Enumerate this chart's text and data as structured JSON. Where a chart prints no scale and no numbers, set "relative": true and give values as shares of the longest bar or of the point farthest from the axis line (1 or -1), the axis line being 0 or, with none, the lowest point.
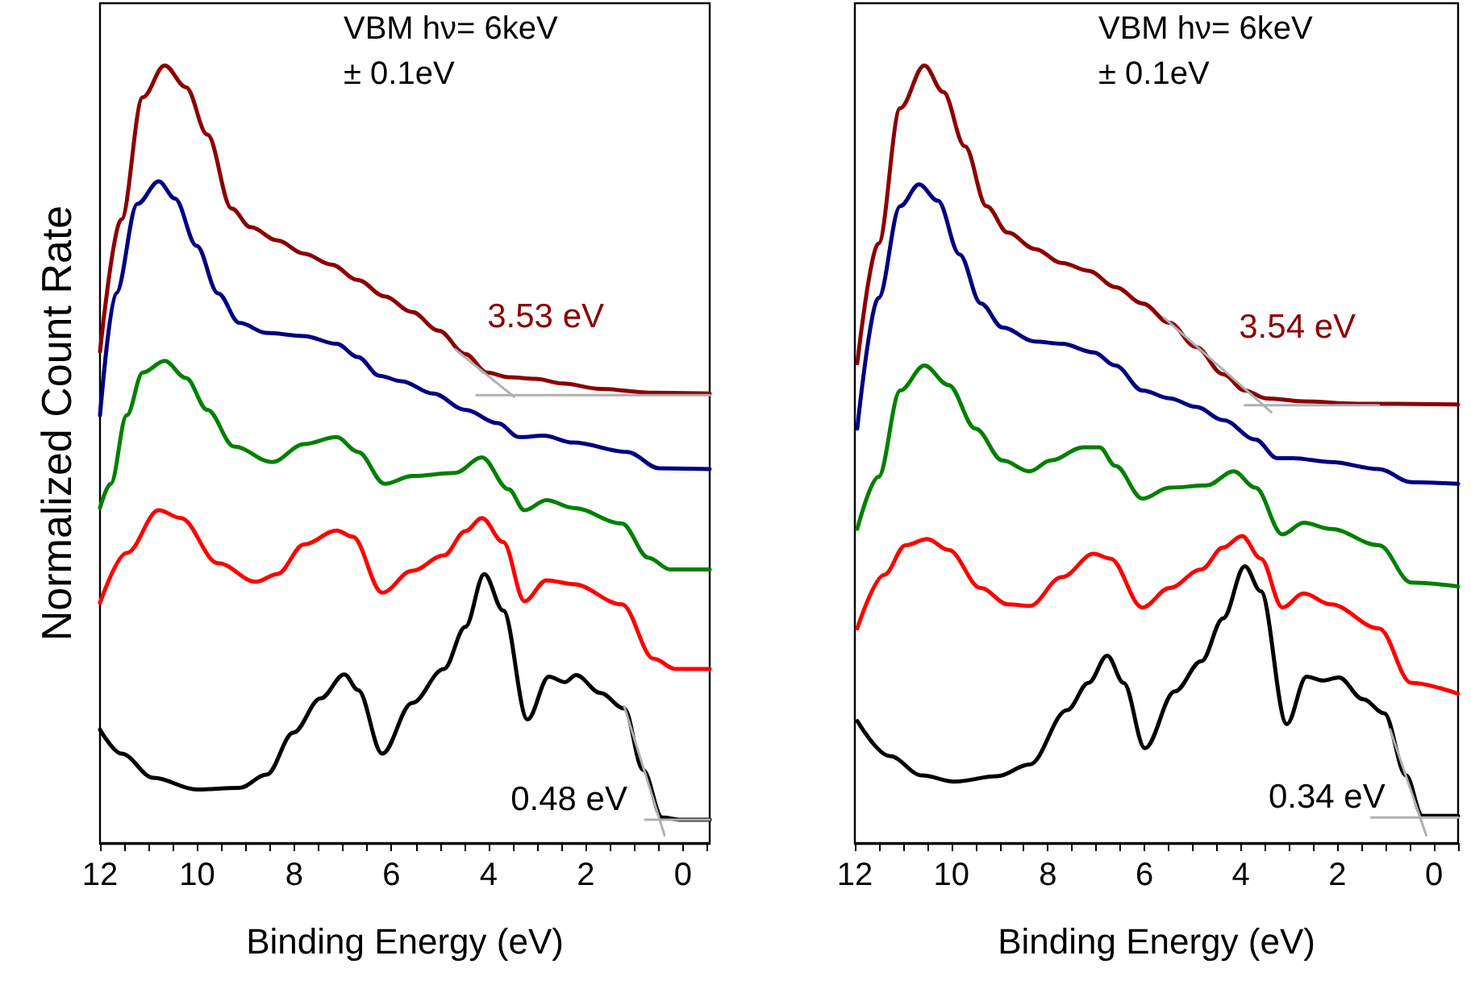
{
  "chart_data": [
    {
      "type": "line",
      "relative": true,
      "marker": "none",
      "line_style": "solid",
      "ylabel": "Normalized Count Rate",
      "xlabel": "Binding Energy (eV)",
      "xlim": [
        12,
        -0.55
      ],
      "xticks": [
        12,
        {
          "value": 11.5,
          "label": null
        },
        {
          "value": 11,
          "label": null
        },
        {
          "value": 10.5,
          "label": null
        },
        10,
        {
          "value": 9.5,
          "label": null
        },
        {
          "value": 9,
          "label": null
        },
        {
          "value": 8.5,
          "label": null
        },
        8,
        {
          "value": 7.5,
          "label": null
        },
        {
          "value": 7,
          "label": null
        },
        {
          "value": 6.5,
          "label": null
        },
        6,
        {
          "value": 5.5,
          "label": null
        },
        {
          "value": 5,
          "label": null
        },
        {
          "value": 4.5,
          "label": null
        },
        4,
        {
          "value": 3.5,
          "label": null
        },
        {
          "value": 3,
          "label": null
        },
        {
          "value": 2.5,
          "label": null
        },
        2,
        {
          "value": 1.5,
          "label": null
        },
        {
          "value": 1,
          "label": null
        },
        {
          "value": 0.5,
          "label": null
        },
        0,
        {
          "value": -0.5,
          "label": null
        }
      ],
      "annotations": [
        "VBM hν= 6keV",
        "± 0.1eV",
        {
          "text": "3.53 eV",
          "x": 3.53,
          "y": 0.576
        },
        {
          "text": "0.48 eV",
          "x": 0.48,
          "y": 0.03
        }
      ],
      "series": [
        {
          "color": "#8b0000",
          "x": [
            12.0,
            11.56,
            11.12,
            10.67,
            10.23,
            9.79,
            9.29,
            8.9,
            8.35,
            7.8,
            7.24,
            6.69,
            6.14,
            5.58,
            5.03,
            4.48,
            4.03,
            3.59,
            3.03,
            2.48,
            1.7,
            0.6,
            -0.55
          ],
          "values": [
            0.632,
            0.802,
            0.959,
            1.0,
            0.972,
            0.911,
            0.816,
            0.792,
            0.775,
            0.758,
            0.744,
            0.724,
            0.703,
            0.683,
            0.659,
            0.629,
            0.605,
            0.599,
            0.597,
            0.591,
            0.584,
            0.579,
            0.578
          ]
        },
        {
          "color": "#000080",
          "x": [
            12.0,
            11.67,
            11.23,
            10.79,
            10.46,
            10.01,
            9.57,
            9.13,
            8.57,
            7.8,
            7.13,
            6.69,
            6.25,
            5.8,
            5.14,
            4.48,
            3.81,
            3.37,
            2.87,
            2.26,
            1.15,
            0.49,
            -0.55
          ],
          "values": [
            0.55,
            0.707,
            0.822,
            0.851,
            0.829,
            0.768,
            0.707,
            0.669,
            0.656,
            0.652,
            0.642,
            0.625,
            0.601,
            0.594,
            0.578,
            0.557,
            0.54,
            0.522,
            0.524,
            0.515,
            0.503,
            0.482,
            0.481
          ]
        },
        {
          "color": "#008000",
          "x": [
            12.0,
            11.78,
            11.45,
            11.12,
            10.67,
            10.23,
            9.79,
            9.24,
            8.46,
            7.8,
            7.13,
            6.69,
            6.14,
            5.58,
            4.69,
            4.14,
            3.59,
            3.26,
            2.81,
            2.26,
            1.26,
            0.71,
            0.27,
            -0.55
          ],
          "values": [
            0.431,
            0.462,
            0.55,
            0.605,
            0.62,
            0.598,
            0.557,
            0.51,
            0.49,
            0.513,
            0.522,
            0.503,
            0.462,
            0.472,
            0.476,
            0.496,
            0.455,
            0.428,
            0.441,
            0.431,
            0.411,
            0.367,
            0.352,
            0.352
          ]
        },
        {
          "color": "#ff0000",
          "x": [
            12.0,
            11.45,
            10.79,
            10.34,
            9.57,
            8.79,
            8.35,
            7.8,
            7.13,
            6.8,
            6.19,
            5.58,
            4.92,
            4.48,
            4.14,
            3.7,
            3.26,
            2.81,
            2.26,
            1.26,
            0.6,
            0.16,
            -0.55
          ],
          "values": [
            0.309,
            0.373,
            0.428,
            0.418,
            0.36,
            0.336,
            0.346,
            0.384,
            0.402,
            0.394,
            0.322,
            0.35,
            0.37,
            0.401,
            0.418,
            0.387,
            0.311,
            0.338,
            0.333,
            0.307,
            0.237,
            0.224,
            0.224
          ]
        },
        {
          "color": "#000000",
          "x": [
            12.0,
            11.56,
            10.9,
            10.01,
            9.13,
            8.57,
            8.02,
            7.46,
            6.97,
            6.69,
            6.19,
            5.58,
            4.92,
            4.48,
            4.09,
            3.7,
            3.2,
            2.76,
            2.43,
            2.2,
            1.7,
            1.21,
            0.82,
            0.43,
            0.04,
            -0.55
          ],
          "values": [
            0.146,
            0.115,
            0.084,
            0.069,
            0.071,
            0.088,
            0.142,
            0.186,
            0.217,
            0.197,
            0.115,
            0.18,
            0.224,
            0.278,
            0.346,
            0.299,
            0.159,
            0.214,
            0.207,
            0.216,
            0.193,
            0.173,
            0.094,
            0.033,
            0.03,
            0.03
          ]
        },
        {
          "color": "#b0b0b0",
          "x": [
            4.69,
            3.48
          ],
          "values": [
            0.635,
            0.574
          ]
        },
        {
          "color": "#b0b0b0",
          "x": [
            4.25,
            -0.55
          ],
          "values": [
            0.576,
            0.576
          ]
        },
        {
          "color": "#b0b0b0",
          "x": [
            1.21,
            0.38
          ],
          "values": [
            0.176,
            0.01
          ]
        },
        {
          "color": "#b0b0b0",
          "x": [
            0.78,
            -0.55
          ],
          "values": [
            0.03,
            0.03
          ]
        }
      ]
    },
    {
      "type": "line",
      "relative": true,
      "marker": "none",
      "line_style": "solid",
      "xlabel": "Binding Energy (eV)",
      "xlim": [
        12,
        -0.5
      ],
      "xticks": [
        12,
        {
          "value": 11.5,
          "label": null
        },
        {
          "value": 11,
          "label": null
        },
        {
          "value": 10.5,
          "label": null
        },
        10,
        {
          "value": 9.5,
          "label": null
        },
        {
          "value": 9,
          "label": null
        },
        {
          "value": 8.5,
          "label": null
        },
        8,
        {
          "value": 7.5,
          "label": null
        },
        {
          "value": 7,
          "label": null
        },
        {
          "value": 6.5,
          "label": null
        },
        6,
        {
          "value": 5.5,
          "label": null
        },
        {
          "value": 5,
          "label": null
        },
        {
          "value": 4.5,
          "label": null
        },
        4,
        {
          "value": 3.5,
          "label": null
        },
        {
          "value": 3,
          "label": null
        },
        {
          "value": 2.5,
          "label": null
        },
        2,
        {
          "value": 1.5,
          "label": null
        },
        {
          "value": 1,
          "label": null
        },
        {
          "value": 0.5,
          "label": null
        },
        0,
        {
          "value": -0.5,
          "label": null
        }
      ],
      "annotations": [
        "VBM hν= 6keV",
        "± 0.1eV",
        {
          "text": "3.54 eV",
          "x": 3.54,
          "y": 0.563
        },
        {
          "text": "0.34 eV",
          "x": 0.34,
          "y": 0.033
        }
      ],
      "series": [
        {
          "color": "#8b0000",
          "x": [
            11.95,
            11.51,
            11.06,
            10.56,
            10.17,
            9.72,
            9.27,
            8.83,
            8.27,
            7.71,
            7.16,
            6.6,
            6.04,
            5.48,
            4.93,
            4.37,
            3.92,
            3.48,
            2.7,
            1.58,
            -0.5
          ],
          "values": [
            0.617,
            0.771,
            0.945,
            1.0,
            0.966,
            0.896,
            0.819,
            0.785,
            0.764,
            0.746,
            0.736,
            0.715,
            0.694,
            0.669,
            0.638,
            0.603,
            0.582,
            0.572,
            0.568,
            0.565,
            0.564
          ]
        },
        {
          "color": "#000080",
          "x": [
            11.95,
            11.51,
            11.06,
            10.67,
            10.28,
            9.83,
            9.39,
            8.94,
            8.27,
            7.71,
            7.05,
            6.6,
            6.04,
            5.48,
            4.93,
            4.37,
            3.7,
            3.25,
            2.92,
            2.14,
            1.14,
            0.47,
            -0.5
          ],
          "values": [
            0.533,
            0.701,
            0.819,
            0.847,
            0.826,
            0.757,
            0.694,
            0.663,
            0.645,
            0.642,
            0.631,
            0.614,
            0.582,
            0.572,
            0.561,
            0.544,
            0.519,
            0.495,
            0.495,
            0.49,
            0.481,
            0.464,
            0.462
          ]
        },
        {
          "color": "#008000",
          "x": [
            11.95,
            11.51,
            11.06,
            10.56,
            10.06,
            9.5,
            8.94,
            8.38,
            7.94,
            7.27,
            6.93,
            6.6,
            6.04,
            5.48,
            4.71,
            4.15,
            3.7,
            3.14,
            2.7,
            2.14,
            1.14,
            0.47,
            -0.5
          ],
          "values": [
            0.404,
            0.471,
            0.582,
            0.614,
            0.589,
            0.533,
            0.492,
            0.478,
            0.492,
            0.509,
            0.509,
            0.485,
            0.443,
            0.457,
            0.46,
            0.478,
            0.457,
            0.397,
            0.412,
            0.404,
            0.383,
            0.335,
            0.33
          ]
        },
        {
          "color": "#ff0000",
          "x": [
            11.95,
            11.39,
            10.95,
            10.5,
            10.06,
            9.39,
            8.83,
            8.38,
            7.71,
            7.05,
            6.71,
            6.04,
            5.48,
            4.82,
            4.37,
            3.98,
            3.59,
            3.14,
            2.7,
            2.14,
            1.14,
            0.47,
            -0.5
          ],
          "values": [
            0.276,
            0.345,
            0.383,
            0.391,
            0.377,
            0.328,
            0.307,
            0.305,
            0.342,
            0.372,
            0.366,
            0.303,
            0.328,
            0.352,
            0.38,
            0.395,
            0.366,
            0.303,
            0.321,
            0.307,
            0.276,
            0.206,
            0.192
          ]
        },
        {
          "color": "#000000",
          "x": [
            11.95,
            11.28,
            10.61,
            9.94,
            9.05,
            8.38,
            7.6,
            7.16,
            6.77,
            6.43,
            5.99,
            5.37,
            4.82,
            4.37,
            3.92,
            3.59,
            3.05,
            2.64,
            2.3,
            1.97,
            1.47,
            1.03,
            0.58,
            0.24,
            -0.5
          ],
          "values": [
            0.157,
            0.112,
            0.087,
            0.079,
            0.086,
            0.101,
            0.171,
            0.206,
            0.241,
            0.206,
            0.122,
            0.195,
            0.234,
            0.289,
            0.356,
            0.324,
            0.153,
            0.214,
            0.209,
            0.213,
            0.185,
            0.167,
            0.087,
            0.035,
            0.035
          ]
        },
        {
          "color": "#b0b0b0",
          "x": [
            5.6,
            3.37
          ],
          "values": [
            0.676,
            0.554
          ]
        },
        {
          "color": "#b0b0b0",
          "x": [
            3.92,
            1.14
          ],
          "values": [
            0.563,
            0.563
          ]
        },
        {
          "color": "#b0b0b0",
          "x": [
            0.91,
            0.16
          ],
          "values": [
            0.146,
            0.01
          ]
        },
        {
          "color": "#b0b0b0",
          "x": [
            1.3,
            -0.5
          ],
          "values": [
            0.033,
            0.033
          ]
        }
      ]
    }
  ]
}
